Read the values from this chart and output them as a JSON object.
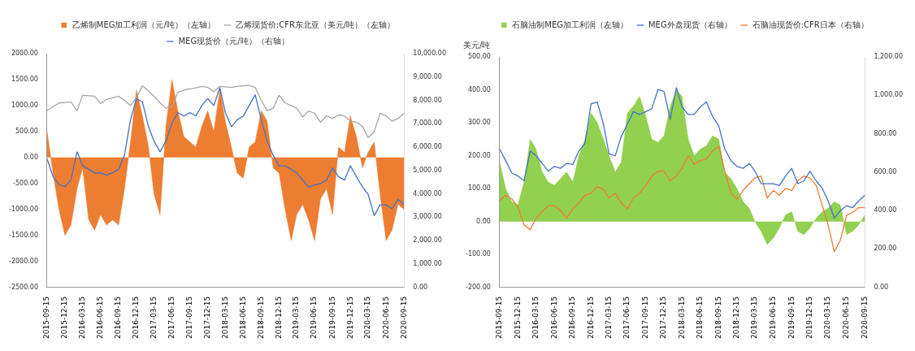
{
  "chart_data": [
    {
      "type": "area",
      "legend": "top",
      "grid": false,
      "x": [
        "2015-09-15",
        "2015-10-15",
        "2015-11-15",
        "2015-12-15",
        "2016-01-15",
        "2016-02-15",
        "2016-03-15",
        "2016-04-15",
        "2016-05-15",
        "2016-06-15",
        "2016-07-15",
        "2016-08-15",
        "2016-09-15",
        "2016-10-15",
        "2016-11-15",
        "2016-12-15",
        "2017-01-15",
        "2017-02-15",
        "2017-03-15",
        "2017-04-15",
        "2017-05-15",
        "2017-06-15",
        "2017-07-15",
        "2017-08-15",
        "2017-09-15",
        "2017-10-15",
        "2017-11-15",
        "2017-12-15",
        "2018-01-15",
        "2018-02-15",
        "2018-03-15",
        "2018-04-15",
        "2018-05-15",
        "2018-06-15",
        "2018-07-15",
        "2018-08-15",
        "2018-09-15",
        "2018-10-15",
        "2018-11-15",
        "2018-12-15",
        "2019-01-15",
        "2019-02-15",
        "2019-03-15",
        "2019-04-15",
        "2019-05-15",
        "2019-06-15",
        "2019-07-15",
        "2019-08-15",
        "2019-09-15",
        "2019-10-15",
        "2019-11-15",
        "2019-12-15",
        "2020-01-15",
        "2020-02-15",
        "2020-03-15",
        "2020-04-15",
        "2020-05-15",
        "2020-06-15",
        "2020-07-15",
        "2020-08-15",
        "2020-09-15"
      ],
      "xlim": [
        "2015-09-15",
        "2020-09-15"
      ],
      "xticks": [
        "2015-09-15",
        "2015-12-15",
        "2016-03-15",
        "2016-06-15",
        "2016-09-15",
        "2016-12-15",
        "2017-03-15",
        "2017-06-15",
        "2017-09-15",
        "2017-12-15",
        "2018-03-15",
        "2018-06-15",
        "2018-09-15",
        "2018-12-15",
        "2019-03-15",
        "2019-06-15",
        "2019-09-15",
        "2019-12-15",
        "2020-03-15",
        "2020-06-15",
        "2020-09-15"
      ],
      "ylim": [
        -2500,
        2000
      ],
      "yticks": [
        {
          "value": -2500,
          "label": "-2500.00"
        },
        {
          "value": -2000,
          "label": "-2000.00"
        },
        {
          "value": -1500,
          "label": "-1500.00"
        },
        {
          "value": -1000,
          "label": "-1000.00"
        },
        {
          "value": -500,
          "label": "-500.00"
        },
        {
          "value": 0,
          "label": "0.00"
        },
        {
          "value": 500,
          "label": "500.00"
        },
        {
          "value": 1000,
          "label": "1000.00"
        },
        {
          "value": 1500,
          "label": "1500.00"
        },
        {
          "value": 2000,
          "label": "2000.00"
        }
      ],
      "y2lim": [
        0,
        10000
      ],
      "y2ticks": [
        {
          "value": 0,
          "label": "0.00"
        },
        {
          "value": 1000,
          "label": "1,000.00"
        },
        {
          "value": 2000,
          "label": "2,000.00"
        },
        {
          "value": 3000,
          "label": "3,000.00"
        },
        {
          "value": 4000,
          "label": "4,000.00"
        },
        {
          "value": 5000,
          "label": "5,000.00"
        },
        {
          "value": 6000,
          "label": "6,000.00"
        },
        {
          "value": 7000,
          "label": "7,000.00"
        },
        {
          "value": 8000,
          "label": "8,000.00"
        },
        {
          "value": 9000,
          "label": "9,000.00"
        },
        {
          "value": 10000,
          "label": "10,000.00"
        }
      ],
      "series": [
        {
          "name": "乙烯制MEG加工利润（元/吨）（左轴）",
          "type": "area",
          "color": "#ed7d31",
          "values": [
            500,
            -300,
            -1000,
            -1500,
            -1300,
            -600,
            -200,
            -1200,
            -1400,
            -1100,
            -1300,
            -1200,
            -1300,
            -600,
            300,
            1300,
            800,
            200,
            -700,
            -1100,
            600,
            1500,
            900,
            400,
            300,
            200,
            600,
            900,
            500,
            1300,
            700,
            200,
            -300,
            -400,
            200,
            300,
            900,
            700,
            -200,
            -300,
            -1000,
            -1600,
            -1100,
            -900,
            -1200,
            -1600,
            -800,
            -600,
            -1100,
            200,
            100,
            800,
            400,
            -200,
            100,
            300,
            -700,
            -1600,
            -1400,
            -900,
            -1000
          ]
        },
        {
          "name": "乙烯现货价:CFR东北亚（美元/吨）（左轴）",
          "type": "line",
          "color": "#a5a5a5",
          "values": [
            900,
            980,
            1050,
            1060,
            1070,
            900,
            1200,
            1190,
            1180,
            1040,
            1120,
            1150,
            1180,
            1100,
            1000,
            1150,
            1380,
            1280,
            1180,
            1050,
            950,
            980,
            1250,
            1300,
            1320,
            1340,
            1370,
            1350,
            1270,
            1370,
            1360,
            1350,
            1370,
            1380,
            1390,
            1350,
            1100,
            900,
            950,
            1200,
            1050,
            1000,
            950,
            780,
            900,
            850,
            680,
            800,
            750,
            820,
            800,
            700,
            680,
            600,
            380,
            500,
            850,
            800,
            700,
            750,
            850
          ]
        },
        {
          "name": "MEG现货价（元/吨）（右轴）",
          "type": "line",
          "axis": "y2",
          "color": "#4472c4",
          "values": [
            5500,
            4740,
            4400,
            4300,
            4600,
            5800,
            5200,
            5050,
            4900,
            4900,
            4800,
            4900,
            5050,
            5650,
            7170,
            8080,
            7930,
            6870,
            6260,
            5800,
            6260,
            7020,
            7480,
            7330,
            7480,
            7330,
            7780,
            8080,
            7780,
            8540,
            7480,
            6870,
            7170,
            7330,
            7780,
            8240,
            7170,
            6260,
            5650,
            5200,
            5200,
            5050,
            4900,
            4590,
            4290,
            4380,
            4440,
            4590,
            5110,
            4740,
            4590,
            5200,
            4740,
            4290,
            3980,
            3070,
            3530,
            3530,
            3370,
            3770,
            3530
          ]
        }
      ]
    },
    {
      "type": "area",
      "legend": "top",
      "grid": false,
      "ylabel": "美元/吨",
      "x": [
        "2015-09-15",
        "2015-10-15",
        "2015-11-15",
        "2015-12-15",
        "2016-01-15",
        "2016-02-15",
        "2016-03-15",
        "2016-04-15",
        "2016-05-15",
        "2016-06-15",
        "2016-07-15",
        "2016-08-15",
        "2016-09-15",
        "2016-10-15",
        "2016-11-15",
        "2016-12-15",
        "2017-01-15",
        "2017-02-15",
        "2017-03-15",
        "2017-04-15",
        "2017-05-15",
        "2017-06-15",
        "2017-07-15",
        "2017-08-15",
        "2017-09-15",
        "2017-10-15",
        "2017-11-15",
        "2017-12-15",
        "2018-01-15",
        "2018-02-15",
        "2018-03-15",
        "2018-04-15",
        "2018-05-15",
        "2018-06-15",
        "2018-07-15",
        "2018-08-15",
        "2018-09-15",
        "2018-10-15",
        "2018-11-15",
        "2018-12-15",
        "2019-01-15",
        "2019-02-15",
        "2019-03-15",
        "2019-04-15",
        "2019-05-15",
        "2019-06-15",
        "2019-07-15",
        "2019-08-15",
        "2019-09-15",
        "2019-10-15",
        "2019-11-15",
        "2019-12-15",
        "2020-01-15",
        "2020-02-15",
        "2020-03-15",
        "2020-04-15",
        "2020-05-15",
        "2020-06-15",
        "2020-07-15",
        "2020-08-15",
        "2020-09-15"
      ],
      "xlim": [
        "2015-09-15",
        "2020-09-15"
      ],
      "xticks": [
        "2015-09-15",
        "2015-12-15",
        "2016-03-15",
        "2016-06-15",
        "2016-09-15",
        "2016-12-15",
        "2017-03-15",
        "2017-06-15",
        "2017-09-15",
        "2017-12-15",
        "2018-03-15",
        "2018-06-15",
        "2018-09-15",
        "2018-12-15",
        "2019-03-15",
        "2019-06-15",
        "2019-09-15",
        "2019-12-15",
        "2020-03-15",
        "2020-06-15",
        "2020-09-15"
      ],
      "ylim": [
        -200,
        500
      ],
      "yticks": [
        {
          "value": -200,
          "label": "-200.00"
        },
        {
          "value": -100,
          "label": "-100.00"
        },
        {
          "value": 0,
          "label": "0.00"
        },
        {
          "value": 100,
          "label": "100.00"
        },
        {
          "value": 200,
          "label": "200.00"
        },
        {
          "value": 300,
          "label": "300.00"
        },
        {
          "value": 400,
          "label": "400.00"
        },
        {
          "value": 500,
          "label": "500.00"
        }
      ],
      "y2lim": [
        0,
        1200
      ],
      "y2ticks": [
        {
          "value": 0,
          "label": "0.00"
        },
        {
          "value": 200,
          "label": "200.00"
        },
        {
          "value": 400,
          "label": "400.00"
        },
        {
          "value": 600,
          "label": "600.00"
        },
        {
          "value": 800,
          "label": "800.00"
        },
        {
          "value": 1000,
          "label": "1,000.00"
        },
        {
          "value": 1200,
          "label": "1,200.00"
        }
      ],
      "series": [
        {
          "name": "石脑油制MEG加工利润（左轴）",
          "type": "area",
          "color": "#92d050",
          "values": [
            180,
            100,
            60,
            50,
            120,
            250,
            220,
            150,
            120,
            110,
            130,
            150,
            120,
            200,
            250,
            330,
            300,
            250,
            200,
            150,
            180,
            330,
            350,
            380,
            320,
            250,
            240,
            260,
            350,
            400,
            380,
            250,
            200,
            220,
            230,
            260,
            250,
            150,
            130,
            100,
            60,
            40,
            0,
            -30,
            -70,
            -50,
            -20,
            20,
            30,
            -30,
            -40,
            -20,
            10,
            30,
            40,
            60,
            50,
            -40,
            -30,
            -10,
            20
          ]
        },
        {
          "name": "MEG外盘现货（右轴）",
          "type": "line",
          "axis": "y2",
          "color": "#4472c4",
          "values": [
            720,
            660,
            595,
            580,
            555,
            710,
            685,
            645,
            605,
            630,
            620,
            645,
            640,
            710,
            750,
            955,
            965,
            850,
            695,
            685,
            785,
            850,
            915,
            900,
            915,
            930,
            1030,
            1020,
            875,
            1040,
            940,
            900,
            900,
            940,
            965,
            890,
            840,
            720,
            660,
            630,
            620,
            645,
            605,
            540,
            540,
            540,
            530,
            580,
            620,
            540,
            555,
            605,
            555,
            515,
            450,
            360,
            400,
            425,
            415,
            450,
            480
          ]
        },
        {
          "name": "石脑油现货价:CFR日本（右轴）",
          "type": "line",
          "axis": "y2",
          "color": "#ed7d31",
          "values": [
            450,
            480,
            460,
            420,
            325,
            300,
            360,
            395,
            425,
            425,
            400,
            360,
            410,
            440,
            480,
            490,
            525,
            510,
            465,
            490,
            440,
            410,
            465,
            490,
            530,
            580,
            605,
            605,
            555,
            580,
            620,
            685,
            640,
            660,
            670,
            710,
            735,
            605,
            490,
            460,
            505,
            540,
            570,
            580,
            465,
            505,
            480,
            515,
            505,
            555,
            580,
            570,
            530,
            425,
            325,
            185,
            245,
            375,
            390,
            415,
            415
          ]
        }
      ]
    }
  ]
}
